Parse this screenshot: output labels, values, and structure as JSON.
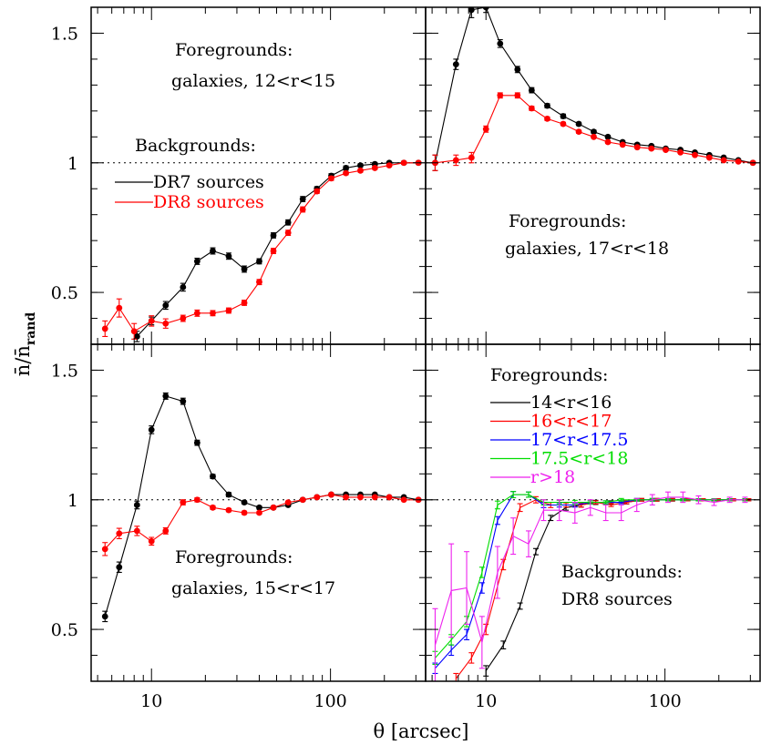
{
  "figure": {
    "xlabel": "θ [arcsec]",
    "ylabel": "n̄/n̄",
    "ylabel_sub": "rand"
  },
  "axes_common": {
    "x_scale": "log",
    "x_range": [
      4.6,
      340
    ],
    "y_range": [
      0.3,
      1.6
    ],
    "x_ticklabels": [
      {
        "value": 10,
        "label": "10"
      },
      {
        "value": 100,
        "label": "100"
      }
    ],
    "y_ticklabels": [
      {
        "value": 0.5,
        "label": "0.5"
      },
      {
        "value": 1,
        "label": "1"
      },
      {
        "value": 1.5,
        "label": "1.5"
      }
    ],
    "reference_line": 1,
    "grid": false
  },
  "chart_data": [
    {
      "type": "line",
      "panel": "top-left",
      "annotations": [
        "Foregrounds:",
        "galaxies, 12<r<15"
      ],
      "legend_title": "Backgrounds:",
      "series": [
        {
          "name": "DR7 sources",
          "color": "#000000",
          "x": [
            8.3,
            10,
            12,
            15,
            18,
            22,
            27,
            33,
            40,
            48,
            58,
            70,
            84,
            101,
            122,
            147,
            177,
            213,
            257,
            310
          ],
          "y": [
            0.33,
            0.39,
            0.45,
            0.52,
            0.62,
            0.66,
            0.64,
            0.59,
            0.62,
            0.72,
            0.77,
            0.86,
            0.9,
            0.95,
            0.98,
            0.99,
            0.995,
            1.0,
            1.0,
            1.0
          ],
          "err": [
            0.02,
            0.015,
            0.015,
            0.015,
            0.012,
            0.012,
            0.012,
            0.012,
            0.01,
            0.01,
            0.01,
            0.01,
            0.008,
            0.008,
            0.008,
            0.006,
            0.006,
            0.005,
            0.005,
            0.005
          ]
        },
        {
          "name": "DR8 sources",
          "color": "#ff0000",
          "x": [
            5.5,
            6.6,
            8.0,
            10,
            12,
            15,
            18,
            22,
            27,
            33,
            40,
            48,
            58,
            70,
            84,
            101,
            122,
            147,
            177,
            213,
            257,
            310
          ],
          "y": [
            0.36,
            0.44,
            0.35,
            0.39,
            0.38,
            0.4,
            0.42,
            0.42,
            0.43,
            0.46,
            0.54,
            0.66,
            0.73,
            0.82,
            0.89,
            0.94,
            0.96,
            0.97,
            0.98,
            0.99,
            1.0,
            1.0
          ],
          "err": [
            0.03,
            0.035,
            0.03,
            0.02,
            0.018,
            0.012,
            0.012,
            0.01,
            0.01,
            0.01,
            0.01,
            0.01,
            0.01,
            0.01,
            0.008,
            0.008,
            0.006,
            0.006,
            0.005,
            0.005,
            0.005,
            0.004
          ]
        }
      ]
    },
    {
      "type": "line",
      "panel": "top-right",
      "annotations": [
        "Foregrounds:",
        "galaxies, 17<r<18"
      ],
      "series": [
        {
          "name": "DR7 sources",
          "color": "#000000",
          "x": [
            5.2,
            6.8,
            8.3,
            10,
            12,
            15,
            18,
            22,
            27,
            33,
            40,
            48,
            58,
            70,
            84,
            101,
            122,
            147,
            177,
            213,
            257,
            310
          ],
          "y": [
            1.0,
            1.38,
            1.59,
            1.6,
            1.46,
            1.36,
            1.28,
            1.22,
            1.18,
            1.15,
            1.12,
            1.1,
            1.08,
            1.07,
            1.065,
            1.055,
            1.05,
            1.04,
            1.03,
            1.02,
            1.01,
            1.0
          ],
          "err": [
            0.03,
            0.02,
            0.03,
            0.02,
            0.015,
            0.012,
            0.01,
            0.008,
            0.008,
            0.006,
            0.006,
            0.005,
            0.005,
            0.005,
            0.004,
            0.004,
            0.004,
            0.003,
            0.003,
            0.003,
            0.003,
            0.003
          ]
        },
        {
          "name": "DR8 sources",
          "color": "#ff0000",
          "x": [
            5.2,
            6.8,
            8.3,
            10,
            12,
            15,
            18,
            22,
            27,
            33,
            40,
            48,
            58,
            70,
            84,
            101,
            122,
            147,
            177,
            213,
            257,
            310
          ],
          "y": [
            1.0,
            1.01,
            1.02,
            1.13,
            1.26,
            1.26,
            1.21,
            1.17,
            1.15,
            1.12,
            1.1,
            1.08,
            1.07,
            1.06,
            1.055,
            1.05,
            1.04,
            1.03,
            1.02,
            1.01,
            1.005,
            1.0
          ],
          "err": [
            0.03,
            0.02,
            0.02,
            0.012,
            0.01,
            0.01,
            0.008,
            0.007,
            0.006,
            0.006,
            0.005,
            0.005,
            0.004,
            0.004,
            0.004,
            0.004,
            0.003,
            0.003,
            0.003,
            0.003,
            0.003,
            0.003
          ]
        }
      ]
    },
    {
      "type": "line",
      "panel": "bottom-left",
      "annotations": [
        "Foregrounds:",
        "galaxies, 15<r<17"
      ],
      "series": [
        {
          "name": "DR7 sources",
          "color": "#000000",
          "x": [
            5.5,
            6.6,
            8.3,
            10,
            12,
            15,
            18,
            22,
            27,
            33,
            40,
            48,
            58,
            70,
            84,
            101,
            122,
            147,
            177,
            213,
            257,
            310
          ],
          "y": [
            0.55,
            0.74,
            0.98,
            1.27,
            1.4,
            1.38,
            1.22,
            1.09,
            1.02,
            0.99,
            0.97,
            0.97,
            0.98,
            1.0,
            1.01,
            1.02,
            1.02,
            1.02,
            1.02,
            1.01,
            1.01,
            1.0
          ],
          "err": [
            0.02,
            0.02,
            0.015,
            0.015,
            0.012,
            0.012,
            0.01,
            0.008,
            0.008,
            0.006,
            0.006,
            0.005,
            0.005,
            0.005,
            0.004,
            0.004,
            0.004,
            0.003,
            0.003,
            0.003,
            0.003,
            0.003
          ]
        },
        {
          "name": "DR8 sources",
          "color": "#ff0000",
          "x": [
            5.5,
            6.6,
            8.3,
            10,
            12,
            15,
            18,
            22,
            27,
            33,
            40,
            48,
            58,
            70,
            84,
            101,
            122,
            147,
            177,
            213,
            257,
            310
          ],
          "y": [
            0.81,
            0.87,
            0.88,
            0.84,
            0.88,
            0.99,
            1.0,
            0.97,
            0.96,
            0.95,
            0.95,
            0.97,
            0.99,
            1.0,
            1.01,
            1.02,
            1.01,
            1.01,
            1.01,
            1.01,
            1.0,
            1.0
          ],
          "err": [
            0.025,
            0.02,
            0.018,
            0.015,
            0.012,
            0.01,
            0.008,
            0.007,
            0.006,
            0.006,
            0.005,
            0.005,
            0.004,
            0.004,
            0.004,
            0.004,
            0.003,
            0.003,
            0.003,
            0.003,
            0.003,
            0.003
          ]
        }
      ]
    },
    {
      "type": "line",
      "panel": "bottom-right",
      "annotations": [
        "Backgrounds:",
        "DR8 sources"
      ],
      "legend_title": "Foregrounds:",
      "series": [
        {
          "name": "14<r<16",
          "color": "#000000",
          "x": [
            10,
            12.5,
            15.5,
            19,
            23,
            28,
            34,
            41,
            50,
            61,
            74,
            90,
            110,
            134,
            163,
            198,
            241,
            293
          ],
          "y": [
            0.34,
            0.44,
            0.59,
            0.8,
            0.93,
            0.97,
            0.98,
            0.99,
            0.99,
            0.99,
            1.0,
            1.0,
            1.0,
            1.0,
            1.0,
            1.0,
            1.0,
            1.0
          ],
          "err": [
            0.02,
            0.015,
            0.012,
            0.012,
            0.01,
            0.01,
            0.008,
            0.008,
            0.006,
            0.006,
            0.005,
            0.005,
            0.005,
            0.004,
            0.004,
            0.004,
            0.004,
            0.004
          ]
        },
        {
          "name": "16<r<17",
          "color": "#ff0000",
          "x": [
            6.8,
            8.3,
            10,
            12.5,
            15.5,
            19,
            23,
            28,
            34,
            41,
            50,
            61,
            74,
            90,
            110,
            134,
            163,
            198,
            241,
            293
          ],
          "y": [
            0.31,
            0.39,
            0.5,
            0.75,
            0.97,
            1.0,
            0.98,
            0.98,
            0.98,
            0.99,
            0.98,
            0.99,
            1.0,
            1.0,
            1.0,
            1.0,
            1.0,
            1.0,
            1.0,
            1.0
          ],
          "err": [
            0.02,
            0.02,
            0.02,
            0.02,
            0.015,
            0.012,
            0.01,
            0.008,
            0.008,
            0.006,
            0.006,
            0.005,
            0.005,
            0.005,
            0.004,
            0.004,
            0.004,
            0.004,
            0.004,
            0.004
          ]
        },
        {
          "name": "17<r<17.5",
          "color": "#0000ff",
          "x": [
            5.2,
            6.4,
            7.8,
            9.5,
            11.6,
            14.2,
            17.3,
            21,
            25.7,
            31.4,
            38.3,
            46.7,
            57,
            69.6,
            85,
            104,
            126,
            154,
            188,
            230,
            280
          ],
          "y": [
            0.35,
            0.42,
            0.48,
            0.66,
            0.92,
            1.02,
            1.02,
            0.98,
            0.98,
            0.98,
            0.99,
            0.99,
            0.99,
            1.0,
            1.0,
            1.0,
            1.0,
            1.0,
            1.0,
            1.0,
            1.0
          ],
          "err": [
            0.02,
            0.02,
            0.02,
            0.02,
            0.015,
            0.012,
            0.01,
            0.01,
            0.008,
            0.008,
            0.006,
            0.006,
            0.005,
            0.005,
            0.005,
            0.004,
            0.004,
            0.004,
            0.004,
            0.004,
            0.004
          ]
        },
        {
          "name": "17.5<r<18",
          "color": "#00dd00",
          "x": [
            5.2,
            6.4,
            7.8,
            9.5,
            11.6,
            14.2,
            17.3,
            21,
            25.7,
            31.4,
            38.3,
            46.7,
            57,
            69.6,
            85,
            104,
            126,
            154,
            188,
            230,
            280
          ],
          "y": [
            0.39,
            0.46,
            0.53,
            0.72,
            0.98,
            1.02,
            1.02,
            0.99,
            0.99,
            0.99,
            0.99,
            0.99,
            1.0,
            1.0,
            1.0,
            1.0,
            1.0,
            1.0,
            1.0,
            1.0,
            1.0
          ],
          "err": [
            0.025,
            0.02,
            0.02,
            0.02,
            0.015,
            0.012,
            0.01,
            0.01,
            0.008,
            0.008,
            0.006,
            0.006,
            0.005,
            0.005,
            0.005,
            0.004,
            0.004,
            0.004,
            0.004,
            0.004,
            0.004
          ]
        },
        {
          "name": "r>18",
          "color": "#ee22ee",
          "x": [
            5.2,
            6.4,
            7.8,
            9.5,
            11.6,
            14.2,
            17.3,
            21,
            25.7,
            31.4,
            38.3,
            46.7,
            57,
            69.6,
            85,
            104,
            126,
            154,
            188,
            230,
            280
          ],
          "y": [
            0.44,
            0.65,
            0.66,
            0.45,
            0.72,
            0.86,
            0.83,
            0.96,
            0.96,
            0.95,
            0.97,
            0.95,
            0.95,
            0.98,
            1.0,
            1.01,
            1.01,
            1.0,
            0.99,
            1.0,
            1.0
          ],
          "err": [
            0.14,
            0.18,
            0.14,
            0.1,
            0.1,
            0.07,
            0.05,
            0.04,
            0.04,
            0.04,
            0.03,
            0.03,
            0.03,
            0.025,
            0.02,
            0.02,
            0.02,
            0.015,
            0.012,
            0.01,
            0.01
          ]
        }
      ]
    }
  ]
}
